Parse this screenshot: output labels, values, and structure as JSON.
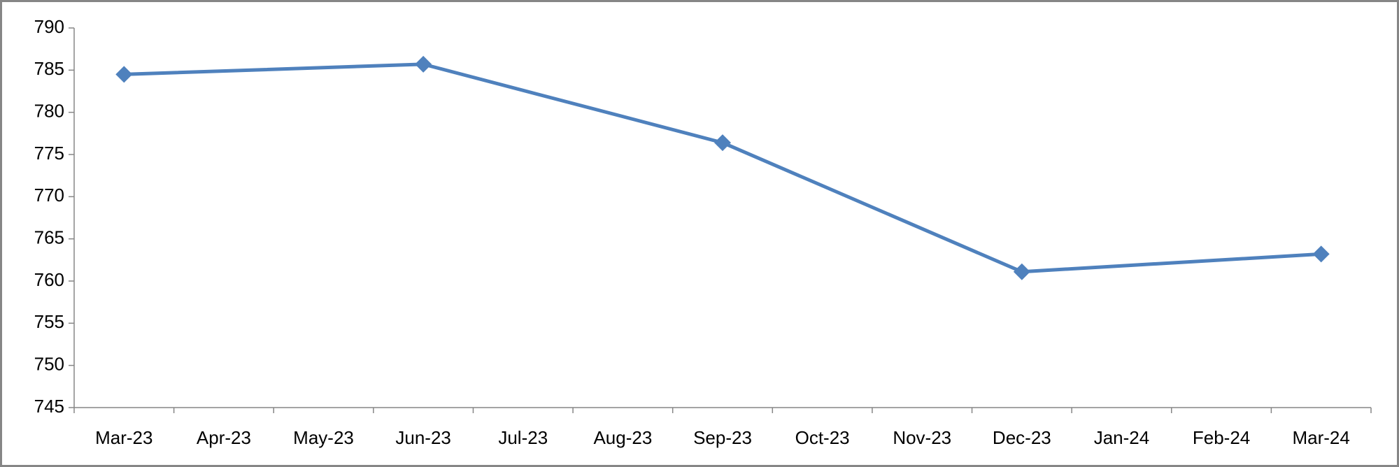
{
  "chart_data": {
    "type": "line",
    "xticks": [
      "Mar-23",
      "Apr-23",
      "May-23",
      "Jun-23",
      "Jul-23",
      "Aug-23",
      "Sep-23",
      "Oct-23",
      "Nov-23",
      "Dec-23",
      "Jan-24",
      "Feb-24",
      "Mar-24"
    ],
    "x": [
      "Mar-23",
      "Jun-23",
      "Sep-23",
      "Dec-23",
      "Mar-24"
    ],
    "series": [
      {
        "color": "#4f81bd",
        "values": [
          784.5,
          785.7,
          776.4,
          761.1,
          763.2
        ]
      }
    ],
    "ylim": [
      745,
      790
    ],
    "yticks": [
      745,
      750,
      755,
      760,
      765,
      770,
      775,
      780,
      785,
      790
    ],
    "grid": false,
    "marker": "diamond"
  }
}
